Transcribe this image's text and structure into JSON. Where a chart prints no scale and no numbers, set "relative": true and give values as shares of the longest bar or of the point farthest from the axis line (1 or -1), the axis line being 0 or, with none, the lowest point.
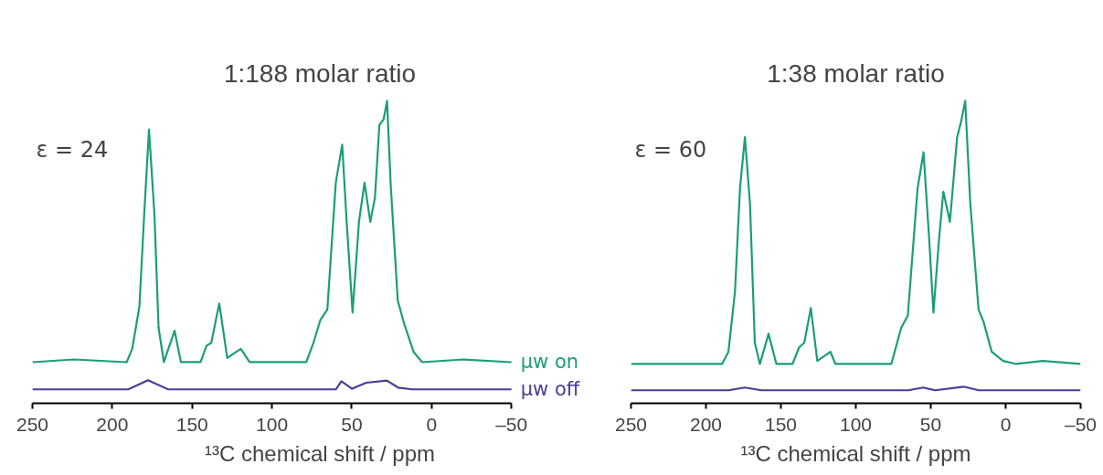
{
  "chart_data": [
    {
      "type": "line",
      "title": "1:188 molar ratio",
      "xlabel": "¹³C chemical shift / ppm",
      "relative": true,
      "legend": false,
      "grid": false,
      "xlim": [
        250,
        -50
      ],
      "xticks": [
        250,
        200,
        150,
        100,
        50,
        0,
        {
          "value": -50,
          "label": "–50"
        }
      ],
      "annotations": [
        "ε = 24"
      ],
      "series": [
        {
          "name": "μw on",
          "color": "#1b9e77",
          "x": [
            250,
            224,
            191,
            187.5,
            183,
            180,
            177,
            173.6,
            171,
            167.7,
            161,
            157,
            144.7,
            141,
            138,
            133,
            128,
            119.5,
            114,
            78.5,
            74,
            69.7,
            65.3,
            60,
            56,
            53.2,
            49.5,
            45.5,
            42,
            38.4,
            35.5,
            32.7,
            30,
            27.9,
            25.6,
            21.2,
            17,
            11.3,
            5.9,
            -20,
            -50
          ],
          "values": [
            0.136,
            0.145,
            0.136,
            0.18,
            0.32,
            0.625,
            0.905,
            0.625,
            0.25,
            0.136,
            0.24,
            0.136,
            0.136,
            0.19,
            0.2,
            0.33,
            0.15,
            0.18,
            0.136,
            0.136,
            0.2,
            0.275,
            0.31,
            0.73,
            0.855,
            0.6,
            0.3,
            0.6,
            0.73,
            0.6,
            0.68,
            0.92,
            0.94,
            1.0,
            0.72,
            0.34,
            0.26,
            0.17,
            0.136,
            0.145,
            0.136
          ]
        },
        {
          "name": "μw off",
          "color": "#4a3d98",
          "x": [
            250,
            190,
            177.6,
            165,
            60,
            56.5,
            49.8,
            41,
            28,
            21,
            12,
            -50
          ],
          "values": [
            0.046,
            0.046,
            0.076,
            0.046,
            0.046,
            0.073,
            0.048,
            0.068,
            0.075,
            0.052,
            0.046,
            0.046
          ]
        }
      ]
    },
    {
      "type": "line",
      "title": "1:38 molar ratio",
      "xlabel": "¹³C chemical shift / ppm",
      "relative": true,
      "legend": false,
      "grid": false,
      "xlim": [
        250,
        -50
      ],
      "xticks": [
        250,
        200,
        150,
        100,
        50,
        0,
        {
          "value": -50,
          "label": "–50"
        }
      ],
      "annotations": [
        "ε = 60"
      ],
      "series": [
        {
          "color": "#1b9e77",
          "x": [
            250,
            189.3,
            185,
            180.6,
            177.3,
            174,
            170.6,
            167.4,
            164,
            158.2,
            153,
            142.2,
            137.8,
            134.4,
            130,
            125.7,
            116.9,
            113.6,
            76.3,
            69.7,
            65.3,
            58.8,
            54.8,
            51,
            48.2,
            44.5,
            41.6,
            37.2,
            32.4,
            29.8,
            27,
            23.6,
            18.1,
            14.8,
            9.3,
            1.7,
            -7,
            -24.7,
            -50
          ],
          "values": [
            0.13,
            0.13,
            0.17,
            0.37,
            0.71,
            0.88,
            0.66,
            0.2,
            0.13,
            0.23,
            0.13,
            0.13,
            0.185,
            0.2,
            0.315,
            0.14,
            0.17,
            0.13,
            0.13,
            0.25,
            0.29,
            0.71,
            0.83,
            0.54,
            0.3,
            0.54,
            0.7,
            0.6,
            0.88,
            0.93,
            1.0,
            0.66,
            0.31,
            0.27,
            0.17,
            0.14,
            0.13,
            0.14,
            0.13
          ]
        },
        {
          "color": "#4a3d98",
          "x": [
            250,
            185,
            174,
            163,
            65,
            55,
            47,
            28,
            18,
            -50
          ],
          "values": [
            0.043,
            0.043,
            0.052,
            0.043,
            0.043,
            0.052,
            0.043,
            0.055,
            0.043,
            0.043
          ]
        }
      ]
    }
  ]
}
